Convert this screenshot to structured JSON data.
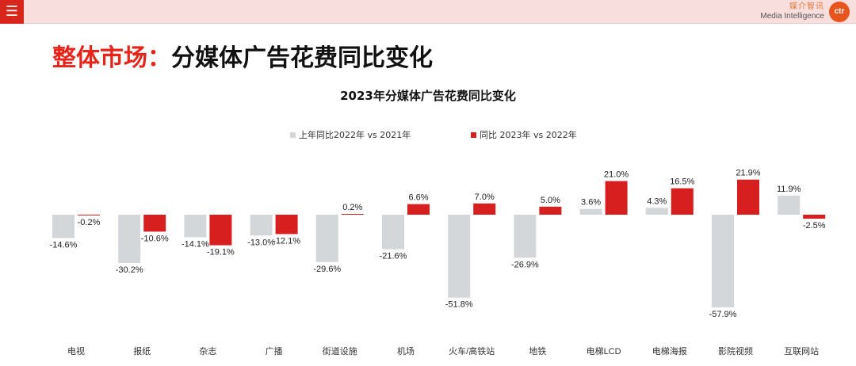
{
  "header": {
    "menu_icon": "hamburger-menu-icon",
    "brand_cn": "媒介智讯",
    "brand_en": "Media Intelligence",
    "brand_logo_text": "ctr",
    "accent": "#d9261c"
  },
  "page": {
    "title_red": "整体市场：",
    "title_black": "分媒体广告花费同比变化"
  },
  "colors": {
    "series_2022": "#d4d7da",
    "series_2023": "#d71f1f"
  },
  "chart_data": {
    "type": "bar",
    "title": "2023年分媒体广告花费同比变化",
    "xlabel": "",
    "ylabel": "",
    "grid": false,
    "legend": "top-center",
    "categories": [
      "电视",
      "报纸",
      "杂志",
      "广播",
      "街道设施",
      "机场",
      "火车/高铁站",
      "地铁",
      "电梯LCD",
      "电梯海报",
      "影院视频",
      "互联网站"
    ],
    "series": [
      {
        "name": "上年同比2022年 vs 2021年",
        "values": [
          -14.6,
          -30.2,
          -14.1,
          -13.0,
          -29.6,
          -21.6,
          -51.8,
          -26.9,
          3.6,
          4.3,
          -57.9,
          11.9
        ],
        "labels": [
          "-14.6%",
          "-30.2%",
          "-14.1%",
          "-13.0%",
          "-29.6%",
          "-21.6%",
          "-51.8%",
          "-26.9%",
          "3.6%",
          "4.3%",
          "-57.9%",
          "11.9%"
        ]
      },
      {
        "name": "同比 2023年 vs 2022年",
        "values": [
          -0.2,
          -10.6,
          -19.1,
          -12.1,
          0.2,
          6.6,
          7.0,
          5.0,
          21.0,
          16.5,
          21.9,
          -2.5
        ],
        "labels": [
          "-0.2%",
          "-10.6%",
          "-19.1%",
          "-12.1%",
          "0.2%",
          "6.6%",
          "7.0%",
          "5.0%",
          "21.0%",
          "16.5%",
          "21.9%",
          "-2.5%"
        ]
      }
    ]
  }
}
